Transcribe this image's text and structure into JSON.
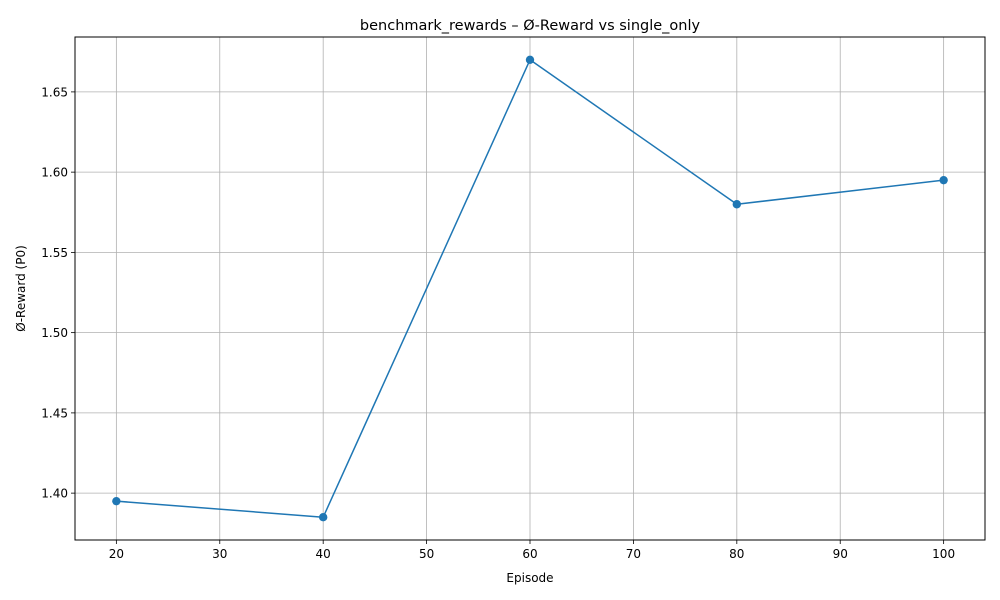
{
  "chart_data": {
    "type": "line",
    "title": "benchmark_rewards – Ø-Reward vs single_only",
    "xlabel": "Episode",
    "ylabel": "Ø-Reward (P0)",
    "x": [
      20,
      40,
      60,
      80,
      100
    ],
    "series": [
      {
        "values": [
          1.395,
          1.385,
          1.67,
          1.58,
          1.595
        ],
        "color": "#1f77b4",
        "marker": "circle"
      }
    ],
    "xlim": [
      16,
      104
    ],
    "ylim": [
      1.3708,
      1.6842
    ],
    "xticks": [
      20,
      30,
      40,
      50,
      60,
      70,
      80,
      90,
      100
    ],
    "xtick_labels": [
      "20",
      "30",
      "40",
      "50",
      "60",
      "70",
      "80",
      "90",
      "100"
    ],
    "yticks": [
      1.4,
      1.45,
      1.5,
      1.55,
      1.6,
      1.65
    ],
    "ytick_labels": [
      "1.40",
      "1.45",
      "1.50",
      "1.55",
      "1.60",
      "1.65"
    ],
    "grid": true
  }
}
